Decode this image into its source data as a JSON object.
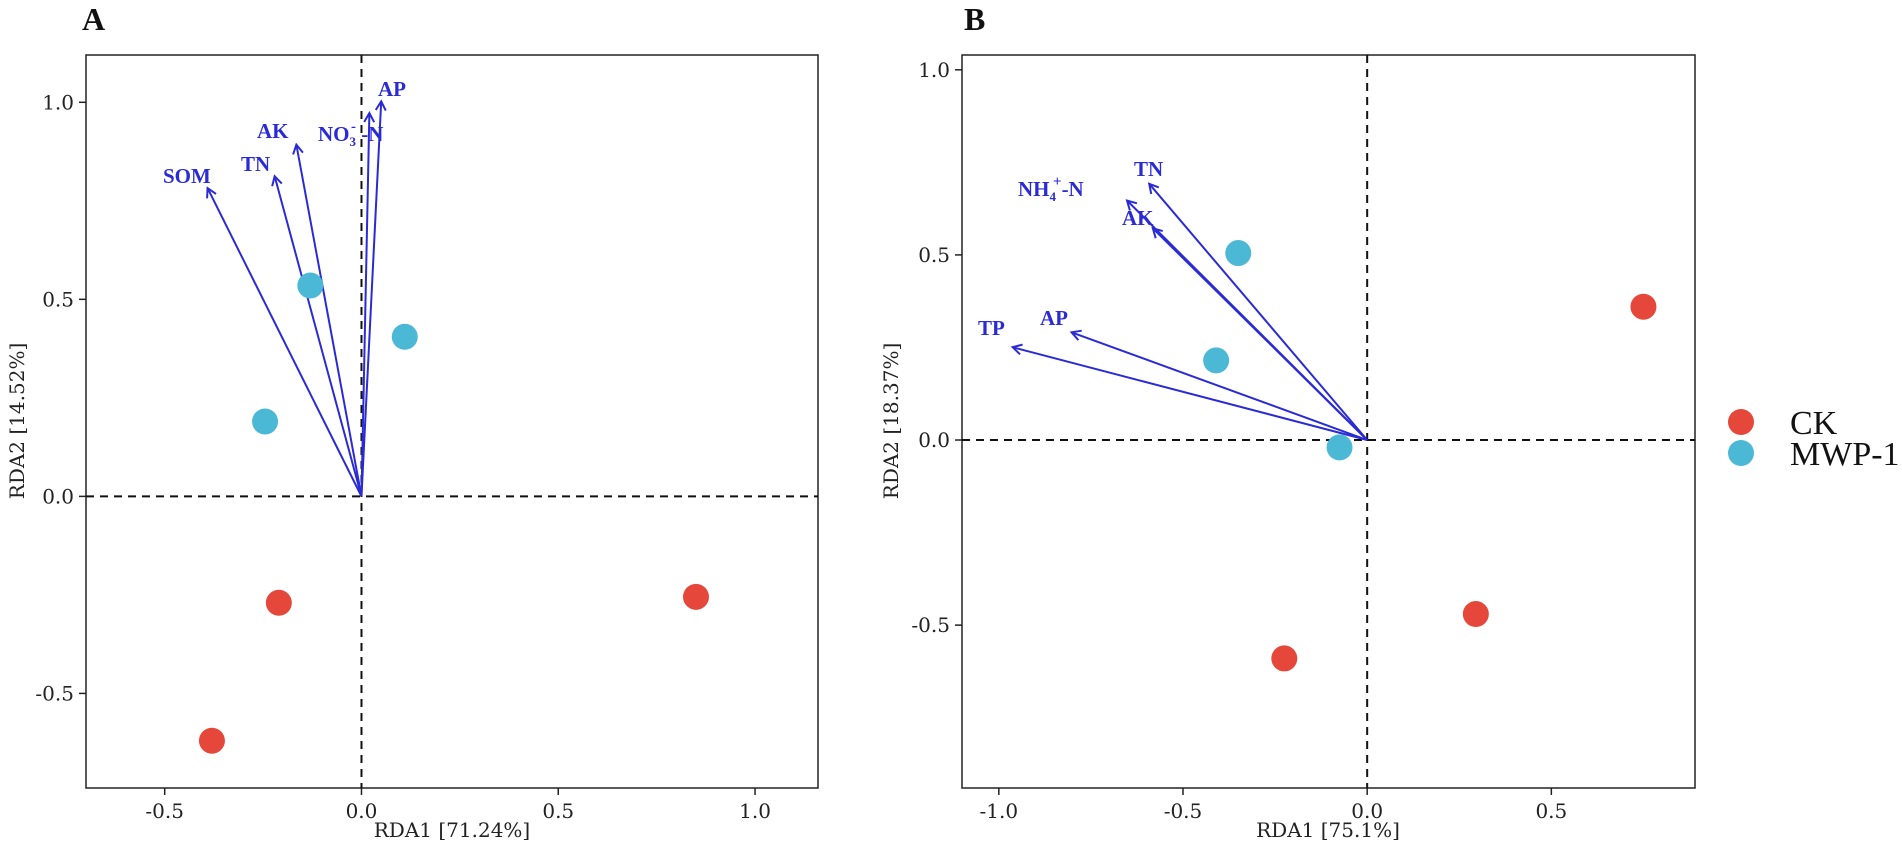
{
  "chart_data": [
    {
      "type": "scatter",
      "panel_label": "A",
      "xlabel": "RDA1 [71.24%]",
      "ylabel": "RDA2 [14.52%]",
      "xlim": [
        -0.7,
        1.16
      ],
      "ylim": [
        -0.74,
        1.12
      ],
      "x_ticks": [
        -0.5,
        0.0,
        0.5,
        1.0
      ],
      "x_tick_labels": [
        "-0.5",
        "0.0",
        "0.5",
        "1.0"
      ],
      "y_ticks": [
        -0.5,
        0.0,
        0.5,
        1.0
      ],
      "y_tick_labels": [
        "-0.5",
        "0.0",
        "0.5",
        "1.0"
      ],
      "series": [
        {
          "name": "CK",
          "color": "#e5473a",
          "points": [
            [
              -0.38,
              -0.62
            ],
            [
              -0.21,
              -0.27
            ],
            [
              0.85,
              -0.255
            ]
          ]
        },
        {
          "name": "MWP-1",
          "color": "#4bb8d6",
          "points": [
            [
              -0.13,
              0.535
            ],
            [
              0.11,
              0.405
            ],
            [
              -0.245,
              0.19
            ]
          ]
        }
      ],
      "vectors": [
        {
          "name": "SOM",
          "x": -0.39,
          "y": 0.78
        },
        {
          "name": "TN",
          "x": -0.22,
          "y": 0.81
        },
        {
          "name": "AK",
          "x": -0.165,
          "y": 0.89
        },
        {
          "name": "NO3- -N",
          "x": 0.02,
          "y": 0.97
        },
        {
          "name": "AP",
          "x": 0.05,
          "y": 1.0
        }
      ]
    },
    {
      "type": "scatter",
      "panel_label": "B",
      "xlabel": "RDA1 [75.1%]",
      "ylabel": "RDA2 [18.37%]",
      "xlim": [
        -1.1,
        0.89
      ],
      "ylim": [
        -0.94,
        1.04
      ],
      "x_ticks": [
        -1.0,
        -0.5,
        0.0,
        0.5
      ],
      "x_tick_labels": [
        "-1.0",
        "-0.5",
        "0.0",
        "0.5"
      ],
      "y_ticks": [
        -0.5,
        0.0,
        0.5,
        1.0
      ],
      "y_tick_labels": [
        "-0.5",
        "0.0",
        "0.5",
        "1.0"
      ],
      "series": [
        {
          "name": "CK",
          "color": "#e5473a",
          "points": [
            [
              0.75,
              0.36
            ],
            [
              0.295,
              -0.47
            ],
            [
              -0.225,
              -0.59
            ]
          ]
        },
        {
          "name": "MWP-1",
          "color": "#4bb8d6",
          "points": [
            [
              -0.35,
              0.505
            ],
            [
              -0.41,
              0.215
            ],
            [
              -0.075,
              -0.02
            ]
          ]
        }
      ],
      "vectors": [
        {
          "name": "TN",
          "x": -0.59,
          "y": 0.69
        },
        {
          "name": "NH4+ -N",
          "x": -0.65,
          "y": 0.645
        },
        {
          "name": "AK",
          "x": -0.58,
          "y": 0.57
        },
        {
          "name": "AP",
          "x": -0.8,
          "y": 0.29
        },
        {
          "name": "TP",
          "x": -0.96,
          "y": 0.25
        }
      ]
    }
  ],
  "legend": {
    "items": [
      {
        "label": "CK",
        "color": "#e5473a"
      },
      {
        "label": "MWP-1",
        "color": "#4bb8d6"
      }
    ]
  },
  "vector_labels": {
    "A": {
      "som": "SOM",
      "tn": "TN",
      "ak": "AK",
      "no3_base": "NO",
      "no3_sub": "3",
      "no3_sup": "-",
      "no3_tail": " -N",
      "ap": "AP"
    },
    "B": {
      "tn": "TN",
      "nh4_base": "NH",
      "nh4_sub": "4",
      "nh4_sup": "+",
      "nh4_tail": "-N",
      "ak": "AK",
      "ap": "AP",
      "tp": "TP"
    }
  },
  "colors": {
    "arrow": "#2b2bd6",
    "axis": "#222222"
  }
}
